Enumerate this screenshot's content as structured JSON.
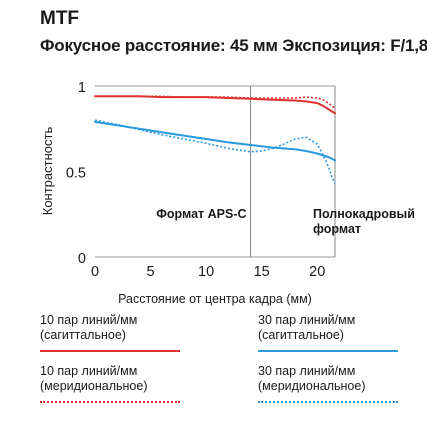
{
  "chart_data": {
    "type": "line",
    "title": "MTF",
    "subtitle": "Фокусное расстояние: 45 мм Экспозиция: F/1,8",
    "xlabel": "Расстояние от центра кадра (мм)",
    "ylabel": "Контрастность",
    "xlim": [
      0,
      21.6
    ],
    "ylim": [
      0,
      1
    ],
    "x_ticks": [
      0,
      5,
      10,
      15,
      20
    ],
    "y_ticks": [
      0,
      0.5,
      1
    ],
    "y_tick_labels": [
      "0",
      "0.5",
      "1"
    ],
    "grid": false,
    "markers": [
      {
        "x": 14,
        "label": "Формат APS-C"
      },
      {
        "x": 21.6,
        "label": "Полнокадровый формат"
      }
    ],
    "series": [
      {
        "name": "10 пар линий/мм (сагиттальное)",
        "color": "#e03030",
        "style": "solid",
        "x": [
          0,
          2,
          4,
          6,
          8,
          10,
          12,
          14,
          16,
          18,
          19,
          20,
          20.5,
          21,
          21.6
        ],
        "y": [
          0.94,
          0.94,
          0.94,
          0.935,
          0.935,
          0.935,
          0.93,
          0.925,
          0.92,
          0.915,
          0.91,
          0.9,
          0.885,
          0.865,
          0.84
        ]
      },
      {
        "name": "10 пар линий/мм (меридиональное)",
        "color": "#e03030",
        "style": "dotted",
        "x": [
          0,
          2,
          4,
          6,
          8,
          10,
          12,
          14,
          16,
          18,
          19,
          20,
          20.5,
          21,
          21.6
        ],
        "y": [
          0.94,
          0.94,
          0.94,
          0.94,
          0.935,
          0.935,
          0.935,
          0.93,
          0.93,
          0.93,
          0.935,
          0.93,
          0.92,
          0.9,
          0.87
        ]
      },
      {
        "name": "30 пар линий/мм (сагиттальное)",
        "color": "#2a9ae0",
        "style": "solid",
        "x": [
          0,
          2,
          4,
          6,
          8,
          10,
          12,
          14,
          16,
          18,
          19,
          20,
          21,
          21.6
        ],
        "y": [
          0.79,
          0.77,
          0.75,
          0.73,
          0.71,
          0.69,
          0.67,
          0.655,
          0.64,
          0.63,
          0.62,
          0.605,
          0.585,
          0.565
        ]
      },
      {
        "name": "30 пар линий/мм (меридиональное)",
        "color": "#2a9ae0",
        "style": "dotted",
        "x": [
          0,
          2,
          4,
          6,
          8,
          10,
          11,
          12,
          13,
          14,
          15,
          16,
          17,
          18,
          19,
          20,
          20.5,
          21,
          21.3,
          21.6
        ],
        "y": [
          0.8,
          0.775,
          0.745,
          0.715,
          0.69,
          0.665,
          0.65,
          0.635,
          0.625,
          0.615,
          0.62,
          0.635,
          0.66,
          0.69,
          0.7,
          0.66,
          0.6,
          0.53,
          0.47,
          0.43
        ]
      }
    ]
  },
  "legend": [
    {
      "line1": "10 пар линий/мм",
      "line2": "(сагиттальное)",
      "color": "#e03030",
      "style": "solid"
    },
    {
      "line1": "30 пар линий/мм",
      "line2": "(сагиттальное)",
      "color": "#2a9ae0",
      "style": "solid"
    },
    {
      "line1": "10 пар линий/мм",
      "line2": "(меридиональное)",
      "color": "#e03030",
      "style": "dotted"
    },
    {
      "line1": "30 пар линий/мм",
      "line2": "(меридиональное)",
      "color": "#2a9ae0",
      "style": "dotted"
    }
  ]
}
